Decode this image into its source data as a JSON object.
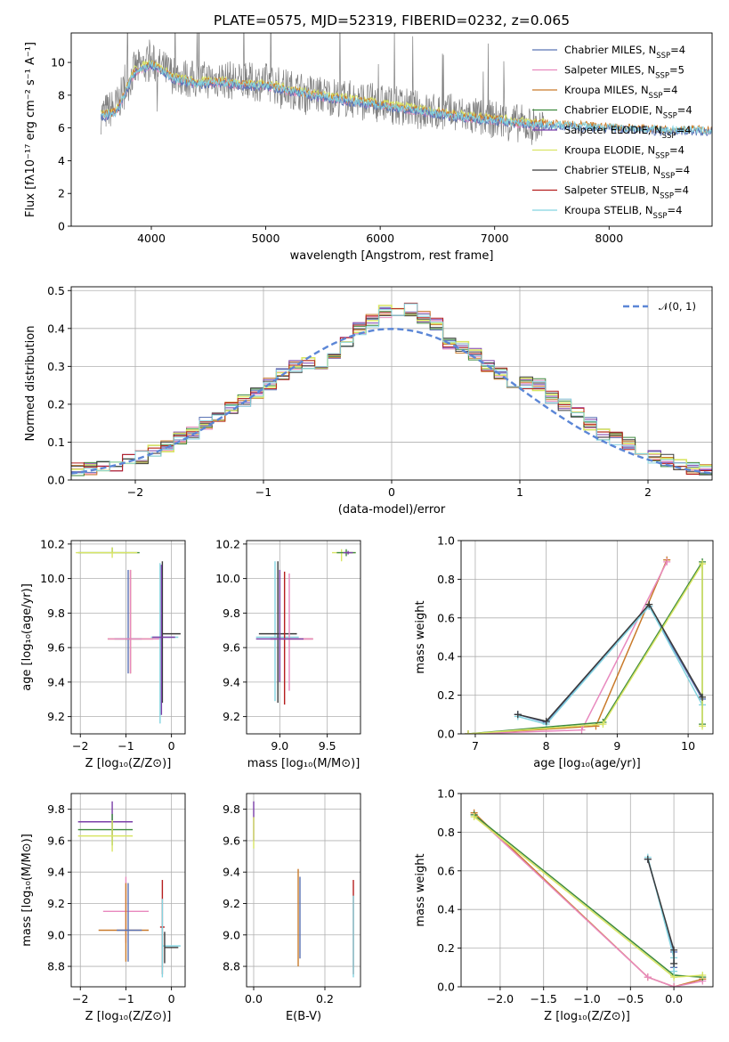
{
  "figure": {
    "title": "PLATE=0575, MJD=52319, FIBERID=0232, z=0.065"
  },
  "colors": [
    "#5b73b5",
    "#e889be",
    "#c97a2a",
    "#3e8a3e",
    "#7b3fa8",
    "#d9e565",
    "#3a3a3a",
    "#b51e1e",
    "#84d4e0"
  ],
  "legend": {
    "models": [
      {
        "label": "Chabrier MILES, N",
        "sub": "SSP",
        "tail": "=4"
      },
      {
        "label": "Salpeter MILES, N",
        "sub": "SSP",
        "tail": "=5"
      },
      {
        "label": "Kroupa MILES, N",
        "sub": "SSP",
        "tail": "=4"
      },
      {
        "label": "Chabrier ELODIE, N",
        "sub": "SSP",
        "tail": "=4"
      },
      {
        "label": "Salpeter ELODIE, N",
        "sub": "SSP",
        "tail": "=4"
      },
      {
        "label": "Kroupa ELODIE, N",
        "sub": "SSP",
        "tail": "=4"
      },
      {
        "label": "Chabrier STELIB, N",
        "sub": "SSP",
        "tail": "=4"
      },
      {
        "label": "Salpeter STELIB, N",
        "sub": "SSP",
        "tail": "=4"
      },
      {
        "label": "Kroupa STELIB, N",
        "sub": "SSP",
        "tail": "=4"
      }
    ],
    "normal_label": "𝒩(0, 1)"
  },
  "chart_data": [
    {
      "id": "spectrum",
      "type": "line",
      "xlabel": "wavelength [Angstrom, rest frame]",
      "ylabel": "Flux [fλ10⁻¹⁷ erg cm⁻² s⁻¹ A⁻¹]",
      "xlim": [
        3300,
        8900
      ],
      "ylim": [
        0,
        11.8
      ],
      "xticks": [
        4000,
        5000,
        6000,
        7000,
        8000
      ],
      "yticks": [
        0,
        2,
        4,
        6,
        8,
        10
      ],
      "grid": false,
      "legend_position": "upper-right",
      "series": [
        {
          "name": "data",
          "color": "#808080",
          "x": [
            3560,
            3700,
            3850,
            4000,
            4200,
            4400,
            4600,
            4800,
            5000,
            5200,
            5400,
            5600,
            5800,
            6000,
            6200,
            6400,
            6600,
            6800,
            7000,
            7200,
            7430
          ],
          "y": [
            6.8,
            7.4,
            9.5,
            10.0,
            9.2,
            8.9,
            9.0,
            8.8,
            8.8,
            8.4,
            8.1,
            7.9,
            7.7,
            7.5,
            7.3,
            7.0,
            6.9,
            6.7,
            6.5,
            6.3,
            6.0
          ]
        },
        {
          "name": "models",
          "color": "#84d4e0",
          "x": [
            3560,
            3700,
            3850,
            4000,
            4200,
            4400,
            4600,
            4800,
            5000,
            5200,
            5400,
            5600,
            5800,
            6000,
            6200,
            6400,
            6600,
            6800,
            7000,
            7200,
            7500,
            7800,
            8100,
            8400,
            8700,
            8900
          ],
          "y": [
            6.7,
            7.0,
            9.4,
            9.9,
            9.0,
            8.7,
            8.8,
            8.6,
            8.6,
            8.3,
            8.0,
            7.8,
            7.6,
            7.4,
            7.2,
            7.0,
            6.8,
            6.6,
            6.5,
            6.3,
            6.2,
            6.1,
            6.0,
            5.9,
            5.9,
            5.8
          ]
        }
      ]
    },
    {
      "id": "residuals",
      "type": "line",
      "xlabel": "(data-model)/error",
      "ylabel": "Normed distribution",
      "xlim": [
        -2.5,
        2.5
      ],
      "ylim": [
        0,
        0.51
      ],
      "xticks": [
        -2,
        -1,
        0,
        1,
        2
      ],
      "yticks": [
        0.0,
        0.1,
        0.2,
        0.3,
        0.4,
        0.5
      ],
      "grid": true,
      "legend_position": "upper-right",
      "bin_edges": [
        -2.5,
        -2.4,
        -2.3,
        -2.2,
        -2.1,
        -2.0,
        -1.9,
        -1.8,
        -1.7,
        -1.6,
        -1.5,
        -1.4,
        -1.3,
        -1.2,
        -1.1,
        -1.0,
        -0.9,
        -0.8,
        -0.7,
        -0.6,
        -0.5,
        -0.4,
        -0.3,
        -0.2,
        -0.1,
        0.0,
        0.1,
        0.2,
        0.3,
        0.4,
        0.5,
        0.6,
        0.7,
        0.8,
        0.9,
        1.0,
        1.1,
        1.2,
        1.3,
        1.4,
        1.5,
        1.6,
        1.7,
        1.8,
        1.9,
        2.0,
        2.1,
        2.2,
        2.3,
        2.4,
        2.5
      ],
      "histogram": [
        0.028,
        0.03,
        0.034,
        0.04,
        0.05,
        0.06,
        0.075,
        0.09,
        0.11,
        0.125,
        0.15,
        0.17,
        0.19,
        0.21,
        0.23,
        0.255,
        0.28,
        0.3,
        0.31,
        0.305,
        0.33,
        0.36,
        0.4,
        0.42,
        0.445,
        0.44,
        0.45,
        0.43,
        0.41,
        0.36,
        0.35,
        0.33,
        0.3,
        0.28,
        0.26,
        0.255,
        0.25,
        0.22,
        0.2,
        0.18,
        0.15,
        0.12,
        0.11,
        0.095,
        0.08,
        0.062,
        0.05,
        0.04,
        0.032,
        0.025
      ],
      "normal_curve": {
        "mean": 0,
        "sigma": 1
      }
    },
    {
      "id": "age-vs-Z",
      "type": "scatter",
      "xlabel": "Z [log₁₀(Z/Z⊙)]",
      "ylabel": "age  [log₁₀(age/yr)]",
      "xlim": [
        -2.2,
        0.3
      ],
      "ylim": [
        9.1,
        10.22
      ],
      "xticks": [
        -2,
        -1,
        0
      ],
      "yticks": [
        9.2,
        9.4,
        9.6,
        9.8,
        10.0,
        10.2
      ],
      "grid": true,
      "crosses": [
        {
          "x": -1.3,
          "y": 10.15,
          "xerr": [
            0.75,
            0.6
          ],
          "yerr": [
            0.0,
            0.03
          ],
          "color": "#3e8a3e"
        },
        {
          "x": -1.3,
          "y": 10.15,
          "xerr": [
            0.8,
            0.55
          ],
          "yerr": [
            0.03,
            0.03
          ],
          "color": "#d9e565"
        },
        {
          "x": -0.9,
          "y": 9.65,
          "xerr": [
            0.5,
            0.5
          ],
          "yerr": [
            0.2,
            0.4
          ],
          "color": "#c97a2a"
        },
        {
          "x": -0.95,
          "y": 9.65,
          "xerr": [
            0.3,
            0.3
          ],
          "yerr": [
            0.2,
            0.4
          ],
          "color": "#5b73b5"
        },
        {
          "x": -0.9,
          "y": 9.65,
          "xerr": [
            0.5,
            0.7
          ],
          "yerr": [
            0.2,
            0.4
          ],
          "color": "#e889be"
        },
        {
          "x": -0.25,
          "y": 9.66,
          "xerr": [
            0.2,
            0.4
          ],
          "yerr": [
            0.5,
            0.43
          ],
          "color": "#84d4e0"
        },
        {
          "x": -0.2,
          "y": 9.68,
          "xerr": [
            0.0,
            0.4
          ],
          "yerr": [
            0.4,
            0.42
          ],
          "color": "#3a3a3a"
        },
        {
          "x": -0.22,
          "y": 9.66,
          "xerr": [
            0.2,
            0.3
          ],
          "yerr": [
            0.45,
            0.42
          ],
          "color": "#7b3fa8"
        }
      ]
    },
    {
      "id": "age-vs-mass",
      "type": "scatter",
      "xlabel": "mass [log₁₀(M/M⊙)]",
      "ylabel": "",
      "xlim": [
        8.65,
        9.85
      ],
      "ylim": [
        9.1,
        10.22
      ],
      "xticks": [
        9.0,
        9.5
      ],
      "yticks": [
        9.2,
        9.4,
        9.6,
        9.8,
        10.0,
        10.2
      ],
      "grid": true,
      "crosses": [
        {
          "x": 8.95,
          "y": 9.66,
          "xerr": [
            0.2,
            0.25
          ],
          "yerr": [
            0.37,
            0.44
          ],
          "color": "#84d4e0"
        },
        {
          "x": 8.98,
          "y": 9.68,
          "xerr": [
            0.2,
            0.2
          ],
          "yerr": [
            0.4,
            0.42
          ],
          "color": "#3a3a3a"
        },
        {
          "x": 9.05,
          "y": 9.65,
          "xerr": [
            0.15,
            0.3
          ],
          "yerr": [
            0.38,
            0.39
          ],
          "color": "#b51e1e"
        },
        {
          "x": 9.1,
          "y": 9.65,
          "xerr": [
            0.2,
            0.25
          ],
          "yerr": [
            0.3,
            0.38
          ],
          "color": "#e889be"
        },
        {
          "x": 9.0,
          "y": 9.65,
          "xerr": [
            0.25,
            0.25
          ],
          "yerr": [
            0.25,
            0.4
          ],
          "color": "#7b3fa8"
        },
        {
          "x": 9.65,
          "y": 10.15,
          "xerr": [
            0.1,
            0.15
          ],
          "yerr": [
            0.05,
            0.02
          ],
          "color": "#d9e565"
        },
        {
          "x": 9.7,
          "y": 10.15,
          "xerr": [
            0.1,
            0.1
          ],
          "yerr": [
            0.02,
            0.02
          ],
          "color": "#3e8a3e"
        },
        {
          "x": 9.72,
          "y": 10.15,
          "xerr": [
            0.05,
            0.05
          ],
          "yerr": [
            0.01,
            0.01
          ],
          "color": "#7b3fa8"
        }
      ]
    },
    {
      "id": "mass-weight-vs-age",
      "type": "line",
      "xlabel": "age  [log₁₀(age/yr)]",
      "ylabel": "mass weight",
      "xlim": [
        6.8,
        10.35
      ],
      "ylim": [
        0,
        1.0
      ],
      "xticks": [
        7,
        8,
        9,
        10
      ],
      "yticks": [
        0.0,
        0.2,
        0.4,
        0.6,
        0.8,
        1.0
      ],
      "grid": true,
      "series": [
        {
          "color": "#c97a2a",
          "x": [
            6.9,
            8.7,
            9.7
          ],
          "y": [
            0.0,
            0.04,
            0.9
          ]
        },
        {
          "color": "#e889be",
          "x": [
            6.9,
            8.5,
            9.7
          ],
          "y": [
            0.0,
            0.02,
            0.89
          ]
        },
        {
          "color": "#5b73b5",
          "x": [
            7.6,
            8.0,
            9.45,
            10.2
          ],
          "y": [
            0.1,
            0.06,
            0.66,
            0.18
          ]
        },
        {
          "color": "#84d4e0",
          "x": [
            7.6,
            8.0,
            9.45,
            10.2
          ],
          "y": [
            0.09,
            0.05,
            0.66,
            0.15
          ]
        },
        {
          "color": "#3e8a3e",
          "x": [
            6.9,
            8.8,
            10.2,
            10.2
          ],
          "y": [
            0.0,
            0.06,
            0.89,
            0.05
          ]
        },
        {
          "color": "#d9e565",
          "x": [
            6.9,
            8.8,
            10.2,
            10.2
          ],
          "y": [
            0.0,
            0.05,
            0.88,
            0.04
          ]
        },
        {
          "color": "#3a3a3a",
          "x": [
            7.6,
            8.0,
            9.45,
            10.2
          ],
          "y": [
            0.1,
            0.065,
            0.67,
            0.19
          ]
        }
      ]
    },
    {
      "id": "mass-vs-Z",
      "type": "scatter",
      "xlabel": "Z [log₁₀(Z/Z⊙)]",
      "ylabel": "mass [log₁₀(M/M⊙)]",
      "xlim": [
        -2.2,
        0.3
      ],
      "ylim": [
        8.67,
        9.9
      ],
      "xticks": [
        -2,
        -1,
        0
      ],
      "yticks": [
        8.8,
        9.0,
        9.2,
        9.4,
        9.6,
        9.8
      ],
      "grid": true,
      "crosses": [
        {
          "x": -1.3,
          "y": 9.72,
          "xerr": [
            0.75,
            0.45
          ],
          "yerr": [
            0.1,
            0.13
          ],
          "color": "#7b3fa8"
        },
        {
          "x": -1.3,
          "y": 9.67,
          "xerr": [
            0.75,
            0.45
          ],
          "yerr": [
            0.1,
            0.1
          ],
          "color": "#3e8a3e"
        },
        {
          "x": -1.3,
          "y": 9.63,
          "xerr": [
            0.75,
            0.45
          ],
          "yerr": [
            0.1,
            0.1
          ],
          "color": "#d9e565"
        },
        {
          "x": -1.0,
          "y": 9.15,
          "xerr": [
            0.5,
            0.5
          ],
          "yerr": [
            0.2,
            0.22
          ],
          "color": "#e889be"
        },
        {
          "x": -1.0,
          "y": 9.03,
          "xerr": [
            0.6,
            0.5
          ],
          "yerr": [
            0.2,
            0.3
          ],
          "color": "#c97a2a"
        },
        {
          "x": -0.95,
          "y": 9.03,
          "xerr": [
            0.25,
            0.3
          ],
          "yerr": [
            0.2,
            0.3
          ],
          "color": "#5b73b5"
        },
        {
          "x": -0.2,
          "y": 9.05,
          "xerr": [
            0.05,
            0.05
          ],
          "yerr": [
            0.3,
            0.3
          ],
          "color": "#b51e1e"
        },
        {
          "x": -0.2,
          "y": 8.93,
          "xerr": [
            0.0,
            0.4
          ],
          "yerr": [
            0.2,
            0.3
          ],
          "color": "#84d4e0"
        },
        {
          "x": -0.15,
          "y": 8.92,
          "xerr": [
            0.0,
            0.3
          ],
          "yerr": [
            0.1,
            0.1
          ],
          "color": "#3a3a3a"
        }
      ]
    },
    {
      "id": "mass-vs-EBV",
      "type": "scatter",
      "xlabel": "E(B-V)",
      "ylabel": "",
      "xlim": [
        -0.02,
        0.3
      ],
      "ylim": [
        8.67,
        9.9
      ],
      "xticks": [
        0.0,
        0.2
      ],
      "yticks": [
        8.8,
        9.0,
        9.2,
        9.4,
        9.6,
        9.8
      ],
      "grid": true,
      "crosses": [
        {
          "x": 0.0,
          "y": 9.72,
          "xerr": [
            0.0,
            0.0
          ],
          "yerr": [
            0.12,
            0.13
          ],
          "color": "#7b3fa8"
        },
        {
          "x": 0.0,
          "y": 9.65,
          "xerr": [
            0.0,
            0.0
          ],
          "yerr": [
            0.1,
            0.1
          ],
          "color": "#d9e565"
        },
        {
          "x": 0.125,
          "y": 9.1,
          "xerr": [
            0.0,
            0.0
          ],
          "yerr": [
            0.3,
            0.32
          ],
          "color": "#c97a2a"
        },
        {
          "x": 0.13,
          "y": 9.1,
          "xerr": [
            0.0,
            0.0
          ],
          "yerr": [
            0.25,
            0.27
          ],
          "color": "#5b73b5"
        },
        {
          "x": 0.28,
          "y": 9.05,
          "xerr": [
            0.0,
            0.0
          ],
          "yerr": [
            0.3,
            0.3
          ],
          "color": "#b51e1e"
        },
        {
          "x": 0.28,
          "y": 8.95,
          "xerr": [
            0.0,
            0.0
          ],
          "yerr": [
            0.22,
            0.3
          ],
          "color": "#84d4e0"
        }
      ]
    },
    {
      "id": "mass-weight-vs-Z",
      "type": "line",
      "xlabel": "Z [log₁₀(Z/Z⊙)]",
      "ylabel": "mass weight",
      "xlim": [
        -2.45,
        0.45
      ],
      "ylim": [
        0,
        1.0
      ],
      "xticks": [
        -2.0,
        -1.5,
        -1.0,
        -0.5,
        0.0
      ],
      "yticks": [
        0.0,
        0.2,
        0.4,
        0.6,
        0.8,
        1.0
      ],
      "grid": true,
      "series": [
        {
          "color": "#c97a2a",
          "x": [
            -2.3,
            -0.3,
            0.0,
            0.33
          ],
          "y": [
            0.9,
            0.05,
            0.0,
            0.04
          ]
        },
        {
          "color": "#e889be",
          "x": [
            -2.3,
            -0.3,
            0.0,
            0.33
          ],
          "y": [
            0.89,
            0.05,
            0.0,
            0.03
          ]
        },
        {
          "color": "#3e8a3e",
          "x": [
            -2.3,
            0.0,
            0.33
          ],
          "y": [
            0.89,
            0.06,
            0.05
          ]
        },
        {
          "color": "#d9e565",
          "x": [
            -2.3,
            0.0,
            0.33
          ],
          "y": [
            0.88,
            0.05,
            0.06
          ]
        },
        {
          "color": "#5b73b5",
          "x": [
            -0.3,
            0.0,
            0.0
          ],
          "y": [
            0.66,
            0.18,
            0.1
          ]
        },
        {
          "color": "#84d4e0",
          "x": [
            -0.3,
            0.0,
            0.0
          ],
          "y": [
            0.67,
            0.15,
            0.08
          ]
        },
        {
          "color": "#3a3a3a",
          "x": [
            -0.3,
            0.0,
            0.0
          ],
          "y": [
            0.66,
            0.19,
            0.12
          ]
        }
      ]
    }
  ]
}
